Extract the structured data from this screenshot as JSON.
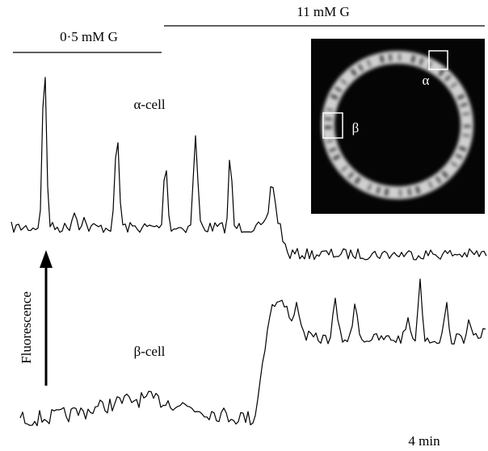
{
  "condition_high": "11 mM G",
  "condition_low": "0·5 mM G",
  "alpha_trace_label": "α-cell",
  "beta_trace_label": "β-cell",
  "y_axis_label": "Fluorescence",
  "scale_bar_label": "4 min",
  "image_labels": {
    "alpha": "α",
    "beta": "β"
  }
}
